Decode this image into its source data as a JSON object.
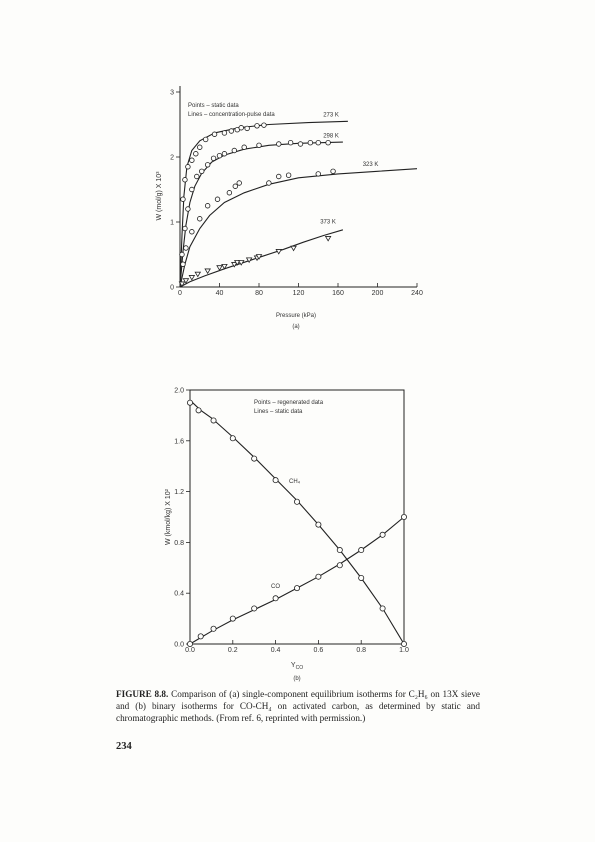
{
  "chart_data": [
    {
      "type": "scatter",
      "panel_label": "(a)",
      "xlabel": "Pressure (kPa)",
      "ylabel": "W (mol/g) X 10³",
      "xlim": [
        0,
        240
      ],
      "ylim": [
        0,
        3
      ],
      "xticks": [
        "0",
        "40",
        "80",
        "120",
        "160",
        "200",
        "240"
      ],
      "yticks": [
        "0",
        "1",
        "2",
        "3"
      ],
      "legend": [
        "Points – static data",
        "Lines – concentration-pulse data"
      ],
      "series": [
        {
          "name": "273 K",
          "marker": "circle",
          "points": [
            [
              3,
              1.35
            ],
            [
              5,
              1.65
            ],
            [
              8,
              1.85
            ],
            [
              12,
              1.95
            ],
            [
              16,
              2.05
            ],
            [
              20,
              2.15
            ],
            [
              26,
              2.27
            ],
            [
              35,
              2.35
            ],
            [
              45,
              2.37
            ],
            [
              52,
              2.4
            ],
            [
              58,
              2.42
            ],
            [
              62,
              2.45
            ],
            [
              68,
              2.44
            ],
            [
              78,
              2.48
            ],
            [
              85,
              2.49
            ]
          ],
          "line": [
            [
              0,
              0
            ],
            [
              2,
              0.8
            ],
            [
              4,
              1.4
            ],
            [
              7,
              1.85
            ],
            [
              12,
              2.1
            ],
            [
              20,
              2.25
            ],
            [
              35,
              2.37
            ],
            [
              60,
              2.45
            ],
            [
              90,
              2.5
            ],
            [
              130,
              2.53
            ],
            [
              170,
              2.55
            ]
          ]
        },
        {
          "name": "298 K",
          "marker": "circle",
          "points": [
            [
              2,
              0.5
            ],
            [
              5,
              0.9
            ],
            [
              8,
              1.2
            ],
            [
              12,
              1.5
            ],
            [
              17,
              1.7
            ],
            [
              22,
              1.78
            ],
            [
              28,
              1.88
            ],
            [
              34,
              1.98
            ],
            [
              40,
              2.02
            ],
            [
              45,
              2.05
            ],
            [
              55,
              2.1
            ],
            [
              65,
              2.15
            ],
            [
              80,
              2.18
            ],
            [
              100,
              2.2
            ],
            [
              112,
              2.22
            ],
            [
              122,
              2.2
            ],
            [
              132,
              2.22
            ],
            [
              140,
              2.22
            ],
            [
              150,
              2.22
            ]
          ],
          "line": [
            [
              0,
              0
            ],
            [
              3,
              0.55
            ],
            [
              6,
              0.95
            ],
            [
              10,
              1.3
            ],
            [
              15,
              1.55
            ],
            [
              22,
              1.75
            ],
            [
              32,
              1.92
            ],
            [
              45,
              2.03
            ],
            [
              65,
              2.12
            ],
            [
              90,
              2.18
            ],
            [
              120,
              2.21
            ],
            [
              165,
              2.23
            ]
          ]
        },
        {
          "name": "323 K",
          "marker": "circle",
          "points": [
            [
              3,
              0.35
            ],
            [
              6,
              0.6
            ],
            [
              12,
              0.85
            ],
            [
              20,
              1.05
            ],
            [
              28,
              1.25
            ],
            [
              38,
              1.35
            ],
            [
              50,
              1.45
            ],
            [
              56,
              1.55
            ],
            [
              60,
              1.6
            ],
            [
              90,
              1.6
            ],
            [
              100,
              1.7
            ],
            [
              110,
              1.72
            ],
            [
              140,
              1.74
            ],
            [
              155,
              1.78
            ]
          ],
          "line": [
            [
              0,
              0
            ],
            [
              5,
              0.35
            ],
            [
              10,
              0.62
            ],
            [
              20,
              0.9
            ],
            [
              30,
              1.1
            ],
            [
              45,
              1.3
            ],
            [
              65,
              1.45
            ],
            [
              90,
              1.58
            ],
            [
              120,
              1.68
            ],
            [
              160,
              1.74
            ],
            [
              200,
              1.78
            ],
            [
              240,
              1.82
            ]
          ]
        },
        {
          "name": "373 K",
          "marker": "triangle",
          "points": [
            [
              2,
              0.05
            ],
            [
              6,
              0.1
            ],
            [
              12,
              0.15
            ],
            [
              18,
              0.2
            ],
            [
              28,
              0.25
            ],
            [
              40,
              0.3
            ],
            [
              45,
              0.32
            ],
            [
              55,
              0.35
            ],
            [
              58,
              0.38
            ],
            [
              62,
              0.38
            ],
            [
              70,
              0.42
            ],
            [
              78,
              0.45
            ],
            [
              80,
              0.47
            ],
            [
              100,
              0.55
            ],
            [
              115,
              0.6
            ],
            [
              150,
              0.75
            ]
          ],
          "line": [
            [
              0,
              0
            ],
            [
              10,
              0.08
            ],
            [
              25,
              0.17
            ],
            [
              45,
              0.28
            ],
            [
              65,
              0.38
            ],
            [
              85,
              0.48
            ],
            [
              105,
              0.58
            ],
            [
              125,
              0.69
            ],
            [
              145,
              0.79
            ],
            [
              165,
              0.88
            ]
          ]
        }
      ]
    },
    {
      "type": "scatter",
      "panel_label": "(b)",
      "xlabel": "Y",
      "xlabel_sub": "CO",
      "ylabel": "W (kmol/kg) X 10²",
      "xlim": [
        0,
        1
      ],
      "ylim": [
        0,
        2
      ],
      "xticks": [
        "0.0",
        "0.2",
        "0.4",
        "0.6",
        "0.8",
        "1.0"
      ],
      "yticks": [
        "0.0",
        "0.4",
        "0.8",
        "1.2",
        "1.6",
        "2.0"
      ],
      "legend": [
        "Points – regenerated data",
        "Lines – static data"
      ],
      "series": [
        {
          "name": "CH₄",
          "points": [
            [
              0.0,
              1.9
            ],
            [
              0.04,
              1.84
            ],
            [
              0.11,
              1.76
            ],
            [
              0.2,
              1.62
            ],
            [
              0.3,
              1.46
            ],
            [
              0.4,
              1.29
            ],
            [
              0.5,
              1.12
            ],
            [
              0.6,
              0.94
            ],
            [
              0.7,
              0.74
            ],
            [
              0.8,
              0.52
            ],
            [
              0.9,
              0.28
            ],
            [
              1.0,
              0.0
            ]
          ],
          "line": [
            [
              0.0,
              1.92
            ],
            [
              0.05,
              1.84
            ],
            [
              0.1,
              1.78
            ],
            [
              0.2,
              1.63
            ],
            [
              0.3,
              1.47
            ],
            [
              0.4,
              1.3
            ],
            [
              0.5,
              1.13
            ],
            [
              0.6,
              0.94
            ],
            [
              0.7,
              0.74
            ],
            [
              0.8,
              0.52
            ],
            [
              0.9,
              0.28
            ],
            [
              1.0,
              0.0
            ]
          ]
        },
        {
          "name": "CO",
          "points": [
            [
              0.0,
              0.0
            ],
            [
              0.05,
              0.06
            ],
            [
              0.11,
              0.12
            ],
            [
              0.2,
              0.2
            ],
            [
              0.3,
              0.28
            ],
            [
              0.4,
              0.36
            ],
            [
              0.5,
              0.44
            ],
            [
              0.6,
              0.53
            ],
            [
              0.7,
              0.62
            ],
            [
              0.8,
              0.74
            ],
            [
              0.9,
              0.86
            ],
            [
              1.0,
              1.0
            ]
          ],
          "line": [
            [
              0.0,
              0.0
            ],
            [
              0.1,
              0.1
            ],
            [
              0.2,
              0.19
            ],
            [
              0.3,
              0.27
            ],
            [
              0.4,
              0.35
            ],
            [
              0.5,
              0.44
            ],
            [
              0.6,
              0.53
            ],
            [
              0.7,
              0.63
            ],
            [
              0.8,
              0.74
            ],
            [
              0.9,
              0.86
            ],
            [
              1.0,
              1.0
            ]
          ]
        }
      ]
    }
  ],
  "caption": {
    "label": "FIGURE 8.8.",
    "text": "Comparison of (a) single-component equilibrium isotherms for C₂H₆ on 13X sieve and (b) binary isotherms for CO-CH₄ on activated carbon, as determined by static and chromatographic methods. (From ref. 6, reprinted with permission.)"
  },
  "page_number": "234"
}
